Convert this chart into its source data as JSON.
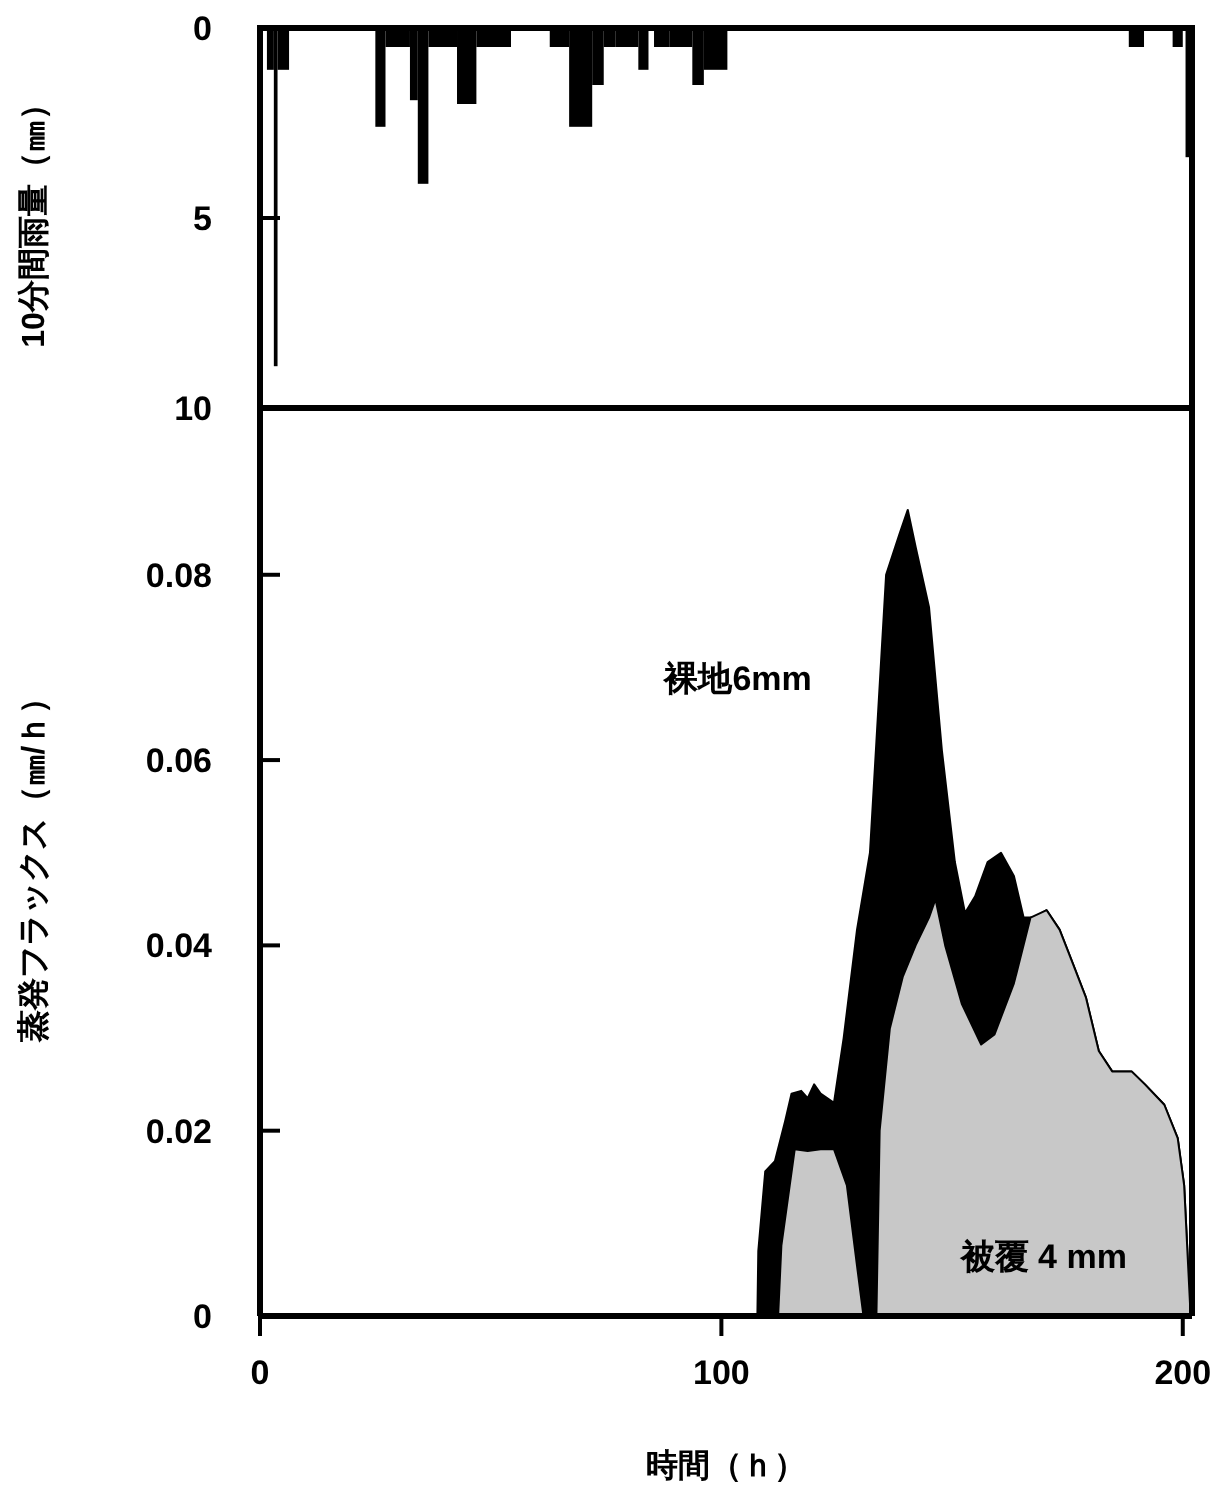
{
  "chart_data": [
    {
      "type": "histogram",
      "ylabel": "10分間雨量（㎜）",
      "color": "#000000",
      "bins": [
        1.5,
        3,
        3.8,
        6.3,
        25,
        27.2,
        32.5,
        34.2,
        36.5,
        42.7,
        46.9,
        54.4,
        62.8,
        67,
        72,
        74.5,
        77,
        82,
        84.2,
        85.4,
        88.7,
        93.7,
        96.2,
        101.3,
        188.3,
        191.6,
        197.8,
        200,
        200.6,
        201.6
      ],
      "values": [
        1.1,
        8.9,
        1.1,
        0,
        2.6,
        0.5,
        1.9,
        4.1,
        0.5,
        2.0,
        0.5,
        0,
        0.5,
        2.6,
        1.5,
        0.5,
        0.5,
        1.1,
        0,
        0.5,
        0.5,
        1.5,
        1.1,
        0,
        0.5,
        0,
        0.5,
        0,
        3.4
      ],
      "xlim": [
        0,
        202
      ],
      "ylim": [
        10,
        0
      ],
      "yticks": [
        0,
        5,
        10
      ],
      "tick_labels": "y"
    },
    {
      "type": "area",
      "xlabel": "時間（ｈ）",
      "ylabel": "蒸発フラックス（㎜/ｈ）",
      "xlim": [
        0,
        202
      ],
      "ylim": [
        0,
        0.098
      ],
      "xticks": [
        0,
        100,
        200
      ],
      "yticks": [
        0,
        0.02,
        0.04,
        0.06,
        0.08
      ],
      "series": [
        {
          "name": "裸地6mm",
          "color": "#000000",
          "x": [
            107.8,
            108,
            109.5,
            111.6,
            113.8,
            115.2,
            117.3,
            118.7,
            120.1,
            121.5,
            124.4,
            126.5,
            129.4,
            132.2,
            133.6,
            135.7,
            138.6,
            140.4,
            142.1,
            145,
            147.8,
            150.6,
            152.8,
            155,
            157.7,
            160.6,
            163.4,
            165.5,
            167.7,
            170.5,
            173.3,
            176.2,
            179,
            181.8,
            184.7,
            188.9,
            191.8,
            196,
            198.9,
            200.3,
            201.7
          ],
          "values": [
            0,
            0.007,
            0.0156,
            0.0167,
            0.021,
            0.024,
            0.0243,
            0.0235,
            0.025,
            0.024,
            0.023,
            0.03,
            0.0417,
            0.05,
            0.062,
            0.08,
            0.0844,
            0.087,
            0.083,
            0.0765,
            0.061,
            0.049,
            0.0435,
            0.0453,
            0.049,
            0.05,
            0.0475,
            0.043,
            0.043,
            0.0438,
            0.0417,
            0.038,
            0.0344,
            0.0286,
            0.0264,
            0.0264,
            0.025,
            0.0228,
            0.0192,
            0.0141,
            0
          ]
        },
        {
          "name": "被覆 4 mm",
          "color": "#c8c8c8",
          "x": [
            112.3,
            113,
            115.9,
            118.7,
            121.5,
            124.4,
            127.2,
            129.4,
            130.8,
            133.6,
            134.3,
            136.5,
            139.3,
            142.1,
            145,
            146.4,
            148.5,
            152.1,
            156.3,
            159.2,
            163.4,
            167,
            170.5,
            173.3,
            176.2,
            179,
            181.8,
            184.7,
            188.9,
            191.8,
            196,
            198.9,
            200.3,
            201.7
          ],
          "values": [
            0,
            0.0076,
            0.018,
            0.0178,
            0.018,
            0.018,
            0.0141,
            0.0054,
            0,
            0,
            0.02,
            0.031,
            0.0366,
            0.04,
            0.043,
            0.045,
            0.04,
            0.0337,
            0.0293,
            0.0304,
            0.0359,
            0.043,
            0.0438,
            0.0417,
            0.038,
            0.0344,
            0.0286,
            0.0264,
            0.0264,
            0.025,
            0.0228,
            0.0192,
            0.0141,
            0
          ]
        }
      ]
    }
  ]
}
